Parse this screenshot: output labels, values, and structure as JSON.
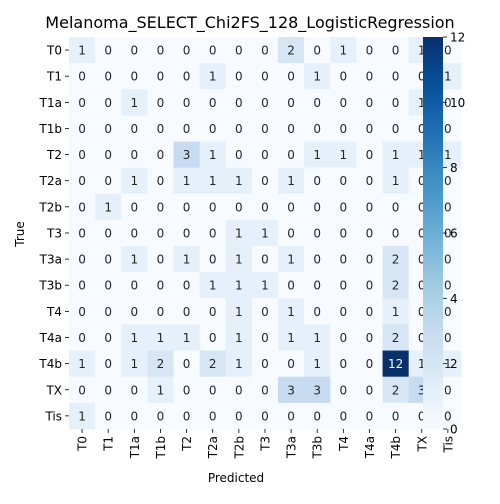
{
  "chart_data": {
    "type": "heatmap",
    "title": "Melanoma_SELECT_Chi2FS_128_LogisticRegression",
    "xlabel": "Predicted",
    "ylabel": "True",
    "labels": [
      "T0",
      "T1",
      "T1a",
      "T1b",
      "T2",
      "T2a",
      "T2b",
      "T3",
      "T3a",
      "T3b",
      "T4",
      "T4a",
      "T4b",
      "TX",
      "Tis"
    ],
    "matrix": [
      [
        1,
        0,
        0,
        0,
        0,
        0,
        0,
        0,
        2,
        0,
        1,
        0,
        0,
        1,
        0
      ],
      [
        0,
        0,
        0,
        0,
        0,
        1,
        0,
        0,
        0,
        1,
        0,
        0,
        0,
        0,
        1
      ],
      [
        0,
        0,
        1,
        0,
        0,
        0,
        0,
        0,
        0,
        0,
        0,
        0,
        0,
        1,
        0
      ],
      [
        0,
        0,
        0,
        0,
        0,
        0,
        0,
        0,
        0,
        0,
        0,
        0,
        0,
        0,
        0
      ],
      [
        0,
        0,
        0,
        0,
        3,
        1,
        0,
        0,
        0,
        1,
        1,
        0,
        1,
        1,
        1
      ],
      [
        0,
        0,
        1,
        0,
        1,
        1,
        1,
        0,
        1,
        0,
        0,
        0,
        1,
        0,
        0
      ],
      [
        0,
        1,
        0,
        0,
        0,
        0,
        0,
        0,
        0,
        0,
        0,
        0,
        0,
        0,
        0
      ],
      [
        0,
        0,
        0,
        0,
        0,
        0,
        1,
        1,
        0,
        0,
        0,
        0,
        0,
        0,
        0
      ],
      [
        0,
        0,
        1,
        0,
        1,
        0,
        1,
        0,
        1,
        0,
        0,
        0,
        2,
        0,
        0
      ],
      [
        0,
        0,
        0,
        0,
        0,
        1,
        1,
        1,
        0,
        0,
        0,
        0,
        2,
        0,
        0
      ],
      [
        0,
        0,
        0,
        0,
        0,
        0,
        1,
        0,
        1,
        0,
        0,
        0,
        1,
        0,
        0
      ],
      [
        0,
        0,
        1,
        1,
        1,
        0,
        1,
        0,
        1,
        1,
        0,
        0,
        2,
        0,
        0
      ],
      [
        1,
        0,
        1,
        2,
        0,
        2,
        1,
        0,
        0,
        1,
        0,
        0,
        12,
        1,
        1
      ],
      [
        0,
        0,
        0,
        1,
        0,
        0,
        0,
        0,
        3,
        3,
        0,
        0,
        2,
        3,
        0
      ],
      [
        1,
        0,
        0,
        0,
        0,
        0,
        0,
        0,
        0,
        0,
        0,
        0,
        0,
        0,
        0
      ]
    ],
    "colorbar": {
      "min": 0,
      "max": 12,
      "ticks": [
        0,
        2,
        4,
        6,
        8,
        10,
        12
      ],
      "colormap": "Blues"
    }
  }
}
